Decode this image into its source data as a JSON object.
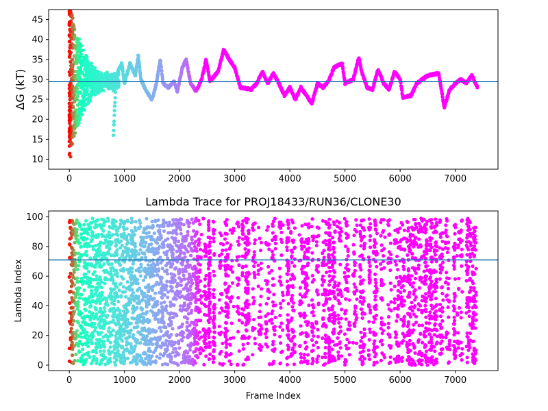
{
  "chart_data": [
    {
      "type": "scatter",
      "title": "",
      "xlabel": "",
      "ylabel": "ΔG (kT)",
      "xlim": [
        -375,
        7775
      ],
      "ylim": [
        7.5,
        47.5
      ],
      "xticks": [
        0,
        1000,
        2000,
        3000,
        4000,
        5000,
        6000,
        7000
      ],
      "yticks": [
        10,
        15,
        20,
        25,
        30,
        35,
        40,
        45
      ],
      "hline": {
        "y": 29.5,
        "color": "#1f77b4"
      },
      "colormap": "rainbow (red at frame 0 → violet at later frames)",
      "grid": false,
      "trace_segments": [
        {
          "x": 0,
          "y": 47
        },
        {
          "x": 20,
          "y": 20
        },
        {
          "x": 40,
          "y": 42
        },
        {
          "x": 60,
          "y": 12
        },
        {
          "x": 80,
          "y": 38
        },
        {
          "x": 100,
          "y": 15
        },
        {
          "x": 130,
          "y": 33
        },
        {
          "x": 160,
          "y": 28
        },
        {
          "x": 190,
          "y": 9
        },
        {
          "x": 220,
          "y": 27
        },
        {
          "x": 260,
          "y": 36
        },
        {
          "x": 300,
          "y": 14
        },
        {
          "x": 340,
          "y": 30
        },
        {
          "x": 400,
          "y": 22
        },
        {
          "x": 460,
          "y": 35
        },
        {
          "x": 520,
          "y": 25
        },
        {
          "x": 580,
          "y": 30
        },
        {
          "x": 640,
          "y": 20
        },
        {
          "x": 700,
          "y": 37
        },
        {
          "x": 760,
          "y": 26
        },
        {
          "x": 800,
          "y": 16
        },
        {
          "x": 850,
          "y": 31
        },
        {
          "x": 950,
          "y": 34
        },
        {
          "x": 1000,
          "y": 29
        },
        {
          "x": 1100,
          "y": 34
        },
        {
          "x": 1200,
          "y": 31
        },
        {
          "x": 1250,
          "y": 36
        },
        {
          "x": 1300,
          "y": 30
        },
        {
          "x": 1400,
          "y": 27
        },
        {
          "x": 1500,
          "y": 25
        },
        {
          "x": 1580,
          "y": 29
        },
        {
          "x": 1650,
          "y": 35
        },
        {
          "x": 1700,
          "y": 29
        },
        {
          "x": 1800,
          "y": 28
        },
        {
          "x": 1900,
          "y": 29.5
        },
        {
          "x": 1960,
          "y": 27
        },
        {
          "x": 2050,
          "y": 33
        },
        {
          "x": 2120,
          "y": 35
        },
        {
          "x": 2200,
          "y": 29
        },
        {
          "x": 2300,
          "y": 27
        },
        {
          "x": 2400,
          "y": 30
        },
        {
          "x": 2480,
          "y": 35
        },
        {
          "x": 2550,
          "y": 29.5
        },
        {
          "x": 2700,
          "y": 32
        },
        {
          "x": 2800,
          "y": 37.5
        },
        {
          "x": 2900,
          "y": 35
        },
        {
          "x": 3000,
          "y": 33
        },
        {
          "x": 3100,
          "y": 28
        },
        {
          "x": 3300,
          "y": 27.5
        },
        {
          "x": 3400,
          "y": 29
        },
        {
          "x": 3500,
          "y": 32
        },
        {
          "x": 3600,
          "y": 29
        },
        {
          "x": 3700,
          "y": 31.5
        },
        {
          "x": 3800,
          "y": 29
        },
        {
          "x": 3900,
          "y": 26
        },
        {
          "x": 4000,
          "y": 28
        },
        {
          "x": 4100,
          "y": 25
        },
        {
          "x": 4200,
          "y": 28
        },
        {
          "x": 4300,
          "y": 26
        },
        {
          "x": 4400,
          "y": 24
        },
        {
          "x": 4500,
          "y": 29
        },
        {
          "x": 4600,
          "y": 28
        },
        {
          "x": 4700,
          "y": 29.5
        },
        {
          "x": 4800,
          "y": 33
        },
        {
          "x": 4950,
          "y": 34
        },
        {
          "x": 5000,
          "y": 29
        },
        {
          "x": 5150,
          "y": 30
        },
        {
          "x": 5250,
          "y": 35.5
        },
        {
          "x": 5300,
          "y": 32
        },
        {
          "x": 5400,
          "y": 28
        },
        {
          "x": 5500,
          "y": 27.5
        },
        {
          "x": 5600,
          "y": 32.5
        },
        {
          "x": 5700,
          "y": 29
        },
        {
          "x": 5800,
          "y": 27.5
        },
        {
          "x": 5900,
          "y": 32
        },
        {
          "x": 6000,
          "y": 30
        },
        {
          "x": 6050,
          "y": 25.5
        },
        {
          "x": 6200,
          "y": 26
        },
        {
          "x": 6300,
          "y": 29
        },
        {
          "x": 6400,
          "y": 30
        },
        {
          "x": 6500,
          "y": 31
        },
        {
          "x": 6700,
          "y": 31.5
        },
        {
          "x": 6800,
          "y": 23
        },
        {
          "x": 6900,
          "y": 27.5
        },
        {
          "x": 7000,
          "y": 29
        },
        {
          "x": 7100,
          "y": 30
        },
        {
          "x": 7200,
          "y": 29
        },
        {
          "x": 7300,
          "y": 31
        },
        {
          "x": 7400,
          "y": 28
        }
      ]
    },
    {
      "type": "scatter",
      "title": "Lambda Trace for PROJ18433/RUN36/CLONE30",
      "xlabel": "Frame Index",
      "ylabel": "Lambda Index",
      "xlim": [
        -375,
        7775
      ],
      "ylim": [
        -3.7,
        104
      ],
      "xticks": [
        0,
        1000,
        2000,
        3000,
        4000,
        5000,
        6000,
        7000
      ],
      "yticks": [
        0,
        20,
        40,
        60,
        80,
        100
      ],
      "hline": {
        "y": 71,
        "color": "#1f77b4"
      },
      "colormap": "rainbow (red at frame 0 → violet at later frames)",
      "grid": false,
      "value_range": [
        0,
        99
      ]
    }
  ]
}
